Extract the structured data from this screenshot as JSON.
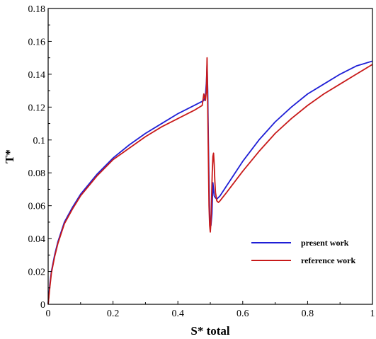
{
  "chart_data": {
    "type": "line",
    "title": "",
    "xlabel": "S* total",
    "ylabel": "T*",
    "xlim": [
      0,
      1
    ],
    "ylim": [
      0,
      0.18
    ],
    "x_ticks": [
      0,
      0.2,
      0.4,
      0.6,
      0.8,
      1
    ],
    "y_ticks": [
      0,
      0.02,
      0.04,
      0.06,
      0.08,
      0.1,
      0.12,
      0.14,
      0.16,
      0.18
    ],
    "x_tick_labels": [
      "0",
      "0.2",
      "0.4",
      "0.6",
      "0.8",
      "1"
    ],
    "y_tick_labels": [
      "0",
      "0.02",
      "0.04",
      "0.06",
      "0.08",
      "0.1",
      "0.12",
      "0.14",
      "0.16",
      "0.18"
    ],
    "grid": false,
    "legend_position": "bottom-right",
    "series": [
      {
        "name": "present work",
        "color": "#1f1fd6",
        "x": [
          0,
          0.005,
          0.01,
          0.02,
          0.03,
          0.05,
          0.075,
          0.1,
          0.15,
          0.2,
          0.25,
          0.3,
          0.35,
          0.4,
          0.45,
          0.48,
          0.485,
          0.488,
          0.49,
          0.492,
          0.494,
          0.496,
          0.498,
          0.5,
          0.502,
          0.505,
          0.508,
          0.51,
          0.512,
          0.515,
          0.52,
          0.53,
          0.55,
          0.6,
          0.65,
          0.7,
          0.75,
          0.8,
          0.85,
          0.9,
          0.95,
          1.0
        ],
        "y": [
          0,
          0.012,
          0.02,
          0.03,
          0.038,
          0.05,
          0.059,
          0.067,
          0.079,
          0.089,
          0.097,
          0.104,
          0.11,
          0.116,
          0.121,
          0.124,
          0.127,
          0.135,
          0.146,
          0.13,
          0.1,
          0.075,
          0.055,
          0.05,
          0.048,
          0.055,
          0.074,
          0.07,
          0.066,
          0.065,
          0.064,
          0.066,
          0.072,
          0.087,
          0.1,
          0.111,
          0.12,
          0.128,
          0.134,
          0.14,
          0.145,
          0.148
        ]
      },
      {
        "name": "reference work",
        "color": "#c81a1a",
        "x": [
          0,
          0.005,
          0.01,
          0.02,
          0.03,
          0.05,
          0.075,
          0.1,
          0.15,
          0.2,
          0.25,
          0.3,
          0.35,
          0.4,
          0.45,
          0.475,
          0.48,
          0.485,
          0.488,
          0.49,
          0.492,
          0.494,
          0.496,
          0.498,
          0.5,
          0.502,
          0.504,
          0.506,
          0.508,
          0.51,
          0.512,
          0.514,
          0.516,
          0.52,
          0.525,
          0.53,
          0.55,
          0.6,
          0.65,
          0.7,
          0.75,
          0.8,
          0.85,
          0.9,
          0.95,
          1.0
        ],
        "y": [
          0,
          0.01,
          0.019,
          0.029,
          0.037,
          0.049,
          0.058,
          0.066,
          0.078,
          0.088,
          0.095,
          0.102,
          0.108,
          0.113,
          0.118,
          0.121,
          0.128,
          0.124,
          0.13,
          0.15,
          0.12,
          0.09,
          0.06,
          0.048,
          0.044,
          0.05,
          0.065,
          0.08,
          0.09,
          0.092,
          0.085,
          0.075,
          0.068,
          0.063,
          0.062,
          0.063,
          0.068,
          0.081,
          0.093,
          0.104,
          0.113,
          0.121,
          0.128,
          0.134,
          0.14,
          0.146
        ]
      }
    ]
  }
}
